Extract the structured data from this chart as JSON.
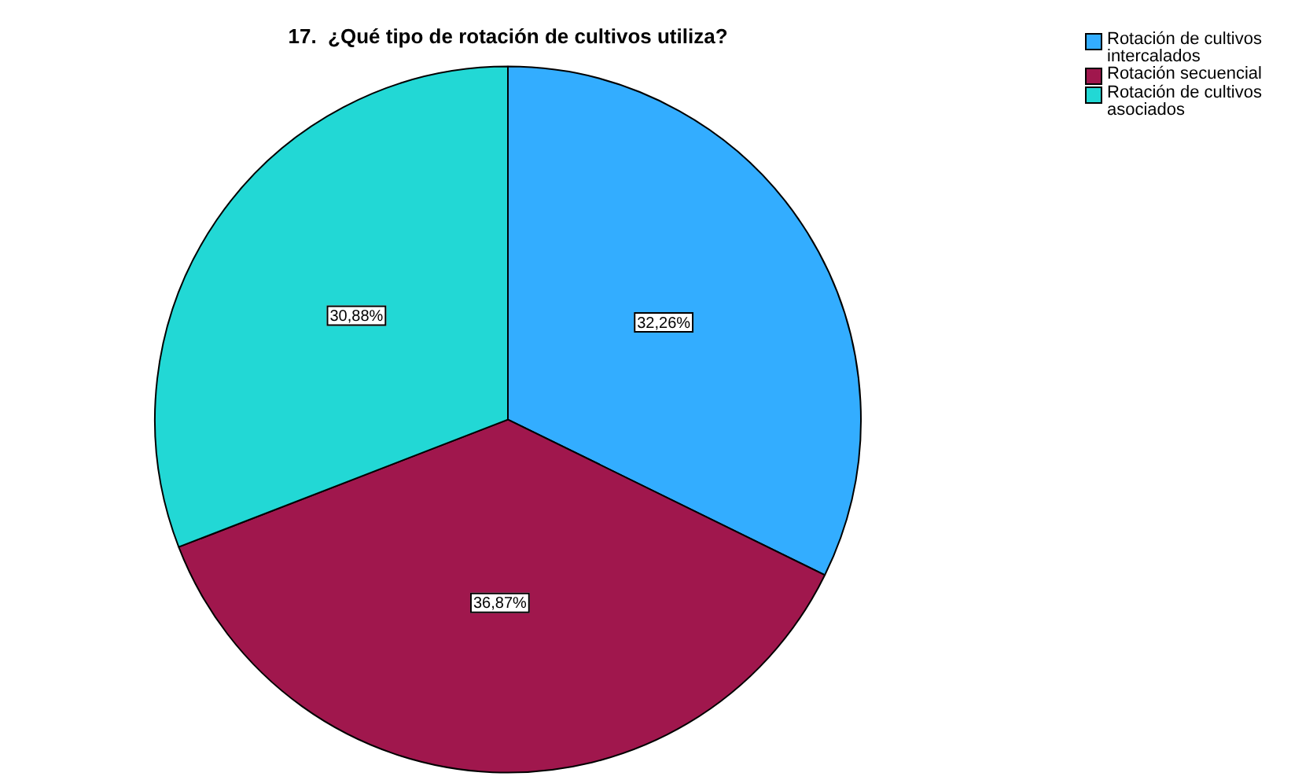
{
  "chart_data": {
    "type": "pie",
    "title": "17.  ¿Qué tipo de rotación de cultivos utiliza?",
    "categories": [
      "Rotación de cultivos intercalados",
      "Rotación secuencial",
      "Rotación de cultivos asociados"
    ],
    "values": [
      32.26,
      36.87,
      30.88
    ],
    "value_labels": [
      "32,26%",
      "36,87%",
      "30,88%"
    ],
    "colors": [
      "#33adff",
      "#a0174d",
      "#22d8d5"
    ],
    "legend": "top right"
  }
}
